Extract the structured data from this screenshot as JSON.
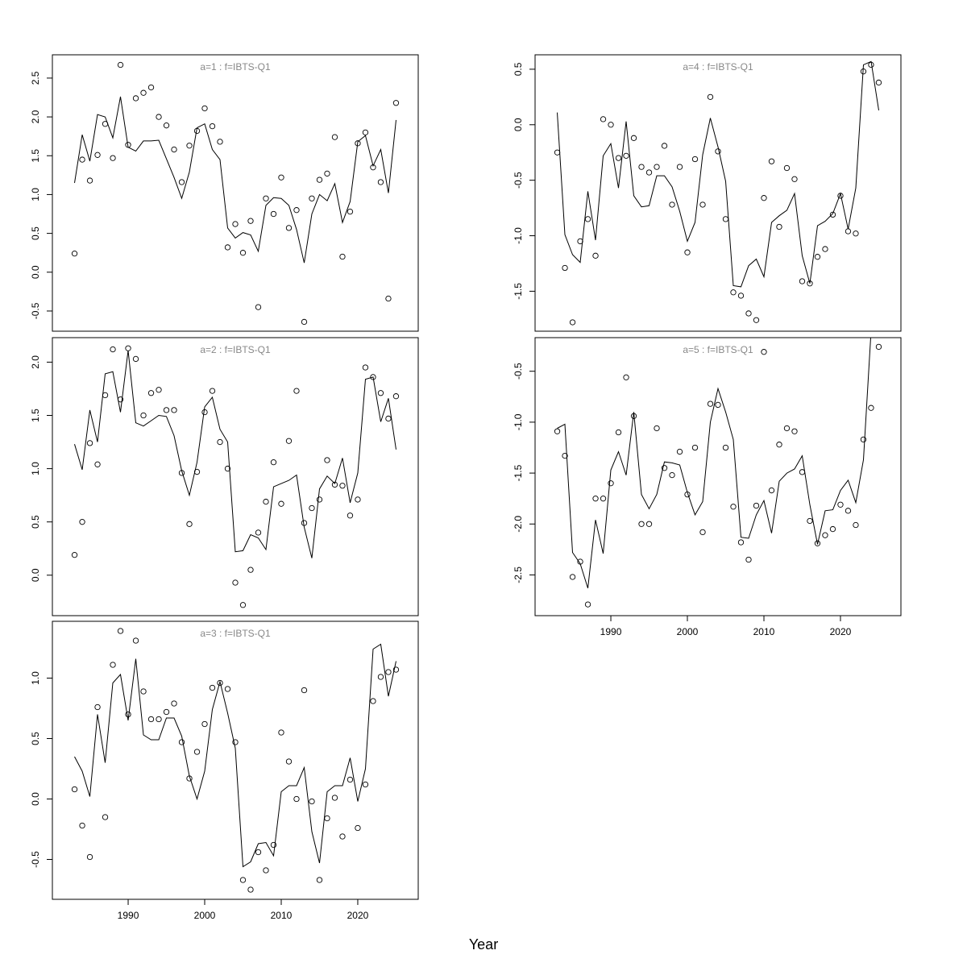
{
  "chart_data": {
    "type": "line",
    "xlabel": "Year",
    "years": [
      1983,
      1984,
      1985,
      1986,
      1987,
      1988,
      1989,
      1990,
      1991,
      1992,
      1993,
      1994,
      1995,
      1996,
      1997,
      1998,
      1999,
      2000,
      2001,
      2002,
      2003,
      2004,
      2005,
      2006,
      2007,
      2008,
      2009,
      2010,
      2011,
      2012,
      2013,
      2014,
      2015,
      2016,
      2017,
      2018,
      2019,
      2020,
      2021,
      2022,
      2023,
      2024,
      2025
    ],
    "xlim": [
      1980.1,
      2027.9
    ],
    "xticks": [
      1990,
      2000,
      2010,
      2020
    ],
    "panels": [
      {
        "title": "a=1  :  f=IBTS-Q1",
        "ylim": [
          -0.76,
          2.8
        ],
        "yticks": [
          -0.5,
          0.0,
          0.5,
          1.0,
          1.5,
          2.0,
          2.5
        ],
        "ytick_labels": [
          "-0.5",
          "0.0",
          "0.5",
          "1.0",
          "1.5",
          "2.0",
          "2.5"
        ],
        "show_xaxis": false,
        "observed": [
          0.24,
          1.45,
          1.18,
          1.51,
          1.91,
          1.47,
          2.67,
          1.64,
          2.24,
          2.31,
          2.38,
          2.0,
          1.89,
          1.58,
          1.16,
          1.63,
          1.82,
          2.11,
          1.88,
          1.68,
          0.32,
          0.62,
          0.25,
          0.66,
          -0.45,
          0.95,
          0.75,
          1.22,
          0.57,
          0.8,
          -0.64,
          0.95,
          1.19,
          1.27,
          1.74,
          0.2,
          0.78,
          1.66,
          1.8,
          1.35,
          1.16,
          -0.34,
          2.18
        ],
        "fitted": [
          1.15,
          1.77,
          1.43,
          2.03,
          2.0,
          1.73,
          2.26,
          1.61,
          1.56,
          1.69,
          1.69,
          1.7,
          1.46,
          1.22,
          0.95,
          1.29,
          1.86,
          1.91,
          1.58,
          1.45,
          0.57,
          0.44,
          0.51,
          0.48,
          0.27,
          0.86,
          0.96,
          0.95,
          0.86,
          0.55,
          0.12,
          0.75,
          1.0,
          0.92,
          1.14,
          0.64,
          0.91,
          1.68,
          1.76,
          1.37,
          1.58,
          1.02,
          1.96
        ]
      },
      {
        "title": "a=2  :  f=IBTS-Q1",
        "ylim": [
          -0.38,
          2.23
        ],
        "yticks": [
          0.0,
          0.5,
          1.0,
          1.5,
          2.0
        ],
        "ytick_labels": [
          "0.0",
          "0.5",
          "1.0",
          "1.5",
          "2.0"
        ],
        "show_xaxis": false,
        "observed": [
          0.19,
          0.5,
          1.24,
          1.04,
          1.69,
          2.12,
          1.65,
          2.13,
          2.03,
          1.5,
          1.71,
          1.74,
          1.55,
          1.55,
          0.96,
          0.48,
          0.97,
          1.53,
          1.73,
          1.25,
          1.0,
          -0.07,
          -0.28,
          0.05,
          0.4,
          0.69,
          1.06,
          0.67,
          1.26,
          1.73,
          0.49,
          0.63,
          0.71,
          1.08,
          0.85,
          0.84,
          0.56,
          0.71,
          1.95,
          1.86,
          1.71,
          1.47,
          1.68
        ],
        "fitted": [
          1.23,
          0.99,
          1.55,
          1.25,
          1.89,
          1.91,
          1.53,
          2.11,
          1.43,
          1.4,
          1.45,
          1.5,
          1.49,
          1.31,
          0.98,
          0.75,
          1.06,
          1.58,
          1.67,
          1.37,
          1.25,
          0.22,
          0.23,
          0.38,
          0.35,
          0.24,
          0.83,
          0.86,
          0.89,
          0.94,
          0.45,
          0.16,
          0.81,
          0.93,
          0.86,
          1.1,
          0.68,
          0.96,
          1.84,
          1.86,
          1.44,
          1.66,
          1.18
        ]
      },
      {
        "title": "a=3  :  f=IBTS-Q1",
        "ylim": [
          -0.83,
          1.47
        ],
        "yticks": [
          -0.5,
          0.0,
          0.5,
          1.0
        ],
        "ytick_labels": [
          "-0.5",
          "0.0",
          "0.5",
          "1.0"
        ],
        "show_xaxis": true,
        "observed": [
          0.08,
          -0.22,
          -0.48,
          0.76,
          -0.15,
          1.11,
          1.39,
          0.7,
          1.31,
          0.89,
          0.66,
          0.66,
          0.72,
          0.79,
          0.47,
          0.17,
          0.39,
          0.62,
          0.92,
          0.96,
          0.91,
          0.47,
          -0.67,
          -0.75,
          -0.44,
          -0.59,
          -0.38,
          0.55,
          0.31,
          0.0,
          0.9,
          -0.02,
          -0.67,
          -0.16,
          0.01,
          -0.31,
          0.16,
          -0.24,
          0.12,
          0.81,
          1.01,
          1.05,
          1.07
        ],
        "fitted": [
          0.35,
          0.23,
          0.02,
          0.7,
          0.3,
          0.96,
          1.03,
          0.65,
          1.16,
          0.53,
          0.49,
          0.49,
          0.67,
          0.67,
          0.52,
          0.19,
          0.0,
          0.23,
          0.74,
          0.97,
          0.71,
          0.42,
          -0.56,
          -0.52,
          -0.37,
          -0.36,
          -0.47,
          0.06,
          0.11,
          0.11,
          0.26,
          -0.27,
          -0.53,
          0.06,
          0.11,
          0.11,
          0.34,
          -0.02,
          0.25,
          1.24,
          1.28,
          0.85,
          1.14
        ]
      },
      {
        "title": "a=4  :  f=IBTS-Q1",
        "ylim": [
          -1.86,
          0.63
        ],
        "yticks": [
          -1.5,
          -1.0,
          -0.5,
          0.0,
          0.5
        ],
        "ytick_labels": [
          "-1.5",
          "-1.0",
          "-0.5",
          "0.0",
          "0.5"
        ],
        "show_xaxis": false,
        "observed": [
          -0.25,
          -1.29,
          -1.78,
          -1.05,
          -0.85,
          -1.18,
          0.05,
          0.0,
          -0.3,
          -0.28,
          -0.12,
          -0.38,
          -0.43,
          -0.38,
          -0.19,
          -0.72,
          -0.38,
          -1.15,
          -0.31,
          -0.72,
          0.25,
          -0.24,
          -0.85,
          -1.51,
          -1.54,
          -1.7,
          -1.76,
          -0.66,
          -0.33,
          -0.92,
          -0.39,
          -0.49,
          -1.41,
          -1.43,
          -1.19,
          -1.12,
          -0.81,
          -0.64,
          -0.96,
          -0.98,
          0.48,
          0.54,
          0.38
        ],
        "fitted": [
          0.11,
          -0.99,
          -1.17,
          -1.24,
          -0.6,
          -1.04,
          -0.28,
          -0.17,
          -0.57,
          0.03,
          -0.64,
          -0.74,
          -0.73,
          -0.46,
          -0.46,
          -0.56,
          -0.78,
          -1.05,
          -0.88,
          -0.27,
          0.06,
          -0.2,
          -0.51,
          -1.45,
          -1.46,
          -1.27,
          -1.21,
          -1.37,
          -0.88,
          -0.82,
          -0.77,
          -0.62,
          -1.18,
          -1.43,
          -0.91,
          -0.87,
          -0.8,
          -0.62,
          -0.94,
          -0.57,
          0.54,
          0.57,
          0.13
        ]
      },
      {
        "title": "a=5  :  f=IBTS-Q1",
        "ylim": [
          -2.9,
          -0.17
        ],
        "yticks": [
          -2.5,
          -2.0,
          -1.5,
          -1.0,
          -0.5
        ],
        "ytick_labels": [
          "-2.5",
          "-2.0",
          "-1.5",
          "-1.0",
          "-0.5"
        ],
        "show_xaxis": true,
        "observed": [
          -1.09,
          -1.33,
          -2.52,
          -2.37,
          -2.79,
          -1.75,
          -1.75,
          -1.6,
          -1.1,
          -0.56,
          -0.94,
          -2.0,
          -2.0,
          -1.06,
          -1.45,
          -1.52,
          -1.29,
          -1.71,
          -1.25,
          -2.08,
          -0.82,
          -0.83,
          -1.25,
          -1.83,
          -2.18,
          -2.35,
          -1.82,
          -0.31,
          -1.67,
          -1.22,
          -1.06,
          -1.09,
          -1.49,
          -1.97,
          -2.19,
          -2.11,
          -2.05,
          -1.81,
          -1.87,
          -2.01,
          -1.17,
          -0.86,
          -0.26
        ],
        "fitted": [
          -1.06,
          -1.02,
          -2.28,
          -2.39,
          -2.63,
          -1.96,
          -2.29,
          -1.47,
          -1.29,
          -1.52,
          -0.9,
          -1.71,
          -1.85,
          -1.71,
          -1.39,
          -1.4,
          -1.42,
          -1.69,
          -1.91,
          -1.78,
          -1.0,
          -0.67,
          -0.9,
          -1.17,
          -2.13,
          -2.14,
          -1.91,
          -1.77,
          -2.09,
          -1.58,
          -1.5,
          -1.46,
          -1.33,
          -1.81,
          -2.2,
          -1.87,
          -1.86,
          -1.67,
          -1.57,
          -1.79,
          -1.37,
          -0.1,
          0.3
        ]
      }
    ]
  }
}
